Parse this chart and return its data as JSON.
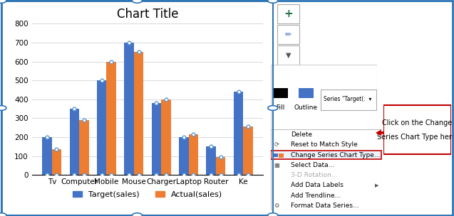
{
  "title": "Chart Title",
  "categories": [
    "Tv",
    "Computer",
    "Mobile",
    "Mouse",
    "Charger",
    "Laptop",
    "Router",
    "Ke"
  ],
  "target_sales": [
    200,
    350,
    500,
    700,
    380,
    200,
    150,
    440
  ],
  "actual_sales": [
    135,
    290,
    600,
    650,
    400,
    215,
    95,
    255
  ],
  "bar_color_target": "#4472C4",
  "bar_color_actual": "#ED7D31",
  "ylim": [
    0,
    800
  ],
  "yticks": [
    0,
    100,
    200,
    300,
    400,
    500,
    600,
    700,
    800
  ],
  "legend_labels": [
    "Target(sales)",
    "Actual(sales)"
  ],
  "border_color": "#2E75B6",
  "grid_color": "#D9D9D9",
  "marker_color": "#5B9BD5",
  "title_fontsize": 12,
  "tick_fontsize": 7.5,
  "legend_fontsize": 8,
  "context_menu_items": [
    "Delete",
    "Reset to Match Style",
    "Change Series Chart Type...",
    "Select Data...",
    "3-D Rotation...",
    "Add Data Labels",
    "Add Trendline...",
    "Format Data Series..."
  ],
  "context_menu_highlight": "Change Series Chart Type...",
  "annotation_line1": "Click on the Change",
  "annotation_line2": "Series Chart Type here.",
  "arrow_color": "#C00000",
  "highlight_border": "#C00000",
  "series_dropdown_text": "Series \"Target(:  ▾"
}
